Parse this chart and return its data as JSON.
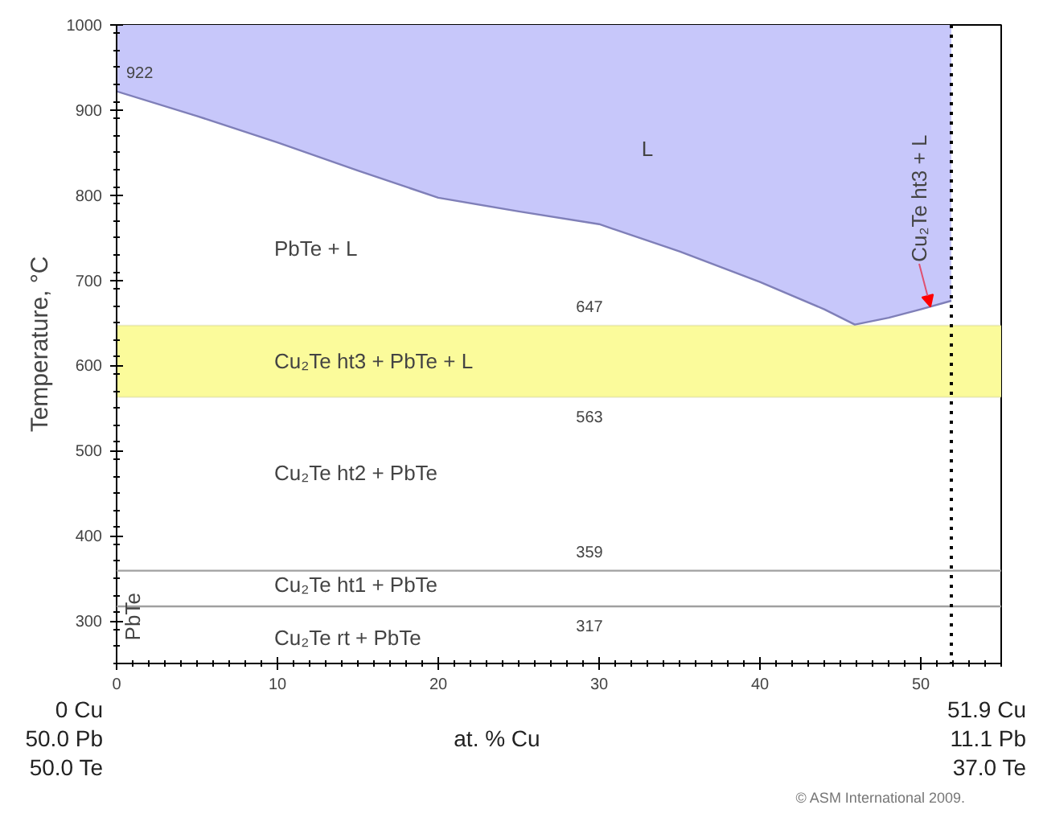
{
  "chart_data": {
    "type": "line",
    "xlabel": "at. % Cu",
    "ylabel": "Temperature, °C",
    "xlim": [
      0,
      55
    ],
    "ylim": [
      250,
      1000
    ],
    "xticks": [
      0,
      10,
      20,
      30,
      40,
      50
    ],
    "yticks": [
      300,
      400,
      500,
      600,
      700,
      800,
      900,
      1000
    ],
    "grid": false,
    "series": [
      {
        "color": "#7f7fb8",
        "x": [
          0,
          5,
          10,
          15,
          20,
          25,
          30,
          35,
          40,
          44,
          45.9,
          48,
          50,
          51.9
        ],
        "values": [
          922,
          893,
          862,
          829,
          797,
          781,
          766,
          734,
          698,
          666,
          648,
          656,
          666,
          676
        ],
        "lower": [
          922,
          893,
          862,
          829,
          797,
          781,
          766,
          734,
          698,
          666,
          648,
          656,
          666,
          676
        ],
        "upper": [
          1000,
          1000,
          1000,
          1000,
          1000,
          1000,
          1000,
          1000,
          1000,
          1000,
          1000,
          1000,
          1000,
          1000
        ]
      }
    ],
    "bands": [
      {
        "axis": "y",
        "from": 563,
        "to": 647,
        "color": "#fbfb9b"
      }
    ],
    "ref_lines": [
      {
        "axis": "y",
        "value": 359,
        "color": "#a0a0a0"
      },
      {
        "axis": "y",
        "value": 317,
        "color": "#a0a0a0"
      },
      {
        "axis": "x",
        "value": 51.9,
        "color": "#000000",
        "line_style": "dotted"
      }
    ],
    "annotations": [
      "0 Cu\n50.0 Pb\n50.0 Te",
      "51.9 Cu\n11.1 Pb\n37.0 Te",
      "© ASM International 2009.",
      {
        "text": "922",
        "x": 0,
        "y": 922
      },
      "L",
      "PbTe + L",
      {
        "text": "647",
        "x": 29.4,
        "y": 647
      },
      "Cu₂Te ht3 + PbTe + L",
      {
        "text": "563",
        "x": 29.4,
        "y": 563
      },
      "Cu₂Te ht2 + PbTe",
      {
        "text": "359",
        "x": 29.4,
        "y": 359
      },
      "Cu₂Te ht1 + PbTe",
      {
        "text": "317",
        "x": 29.4,
        "y": 317
      },
      "Cu₂Te rt + PbTe",
      "PbTe",
      {
        "text": "Cu₂Te ht3 + L",
        "x": 50.6,
        "y": 669
      }
    ]
  }
}
